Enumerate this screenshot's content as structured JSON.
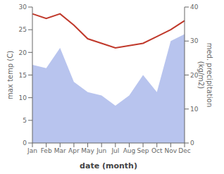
{
  "chart_data": {
    "type": "line",
    "xlabel": "date (month)",
    "ylabel": "max temp (C)",
    "y2label": "med. precipitation\n(kg/m2)",
    "categories": [
      "Jan",
      "Feb",
      "Mar",
      "Apr",
      "May",
      "Jun",
      "Jul",
      "Aug",
      "Sep",
      "Oct",
      "Nov",
      "Dec"
    ],
    "series": [
      {
        "type": "area",
        "axis": "y2",
        "color": "#b8c4ee",
        "values": [
          23,
          22,
          28,
          18,
          15,
          14,
          11,
          14,
          20,
          15,
          30,
          32
        ]
      },
      {
        "type": "line",
        "color": "#c0392b",
        "values": [
          28.5,
          27.5,
          28.5,
          26.0,
          23.0,
          22.0,
          21.0,
          21.5,
          22.0,
          23.5,
          25.0,
          27.0
        ]
      }
    ],
    "ylim": [
      0,
      30
    ],
    "yticks": [
      0,
      5,
      10,
      15,
      20,
      25,
      30
    ],
    "y2lim": [
      0,
      40
    ],
    "y2ticks": [
      0,
      10,
      20,
      30,
      40
    ],
    "grid": false
  }
}
